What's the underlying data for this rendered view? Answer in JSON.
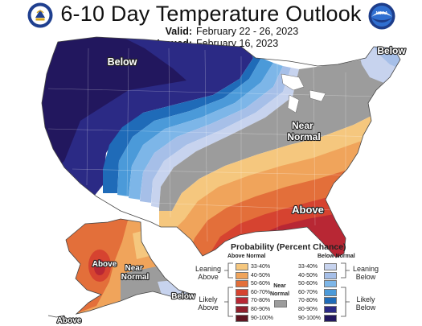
{
  "header": {
    "title": "6-10 Day Temperature Outlook",
    "valid_label": "Valid:",
    "valid_value": "February 22 - 26, 2023",
    "issued_label": "Issued:",
    "issued_value": "February 16, 2023"
  },
  "logos": {
    "left": "commerce-seal",
    "right": "noaa-logo",
    "right_text": "NOAA"
  },
  "map_labels": {
    "below_northwest": "Below",
    "below_maine": "Below",
    "near_normal_conus": "Near Normal",
    "above_southeast": "Above",
    "alaska_above_west": "Above",
    "alaska_near_normal": "Near Normal",
    "alaska_below_southeast": "Below",
    "alaska_above_southwest": "Above"
  },
  "legend": {
    "title": "Probability (Percent Chance)",
    "above_header": "Above Normal",
    "below_header": "Below Normal",
    "near_header": "Near Normal",
    "leaning_above": "Leaning Above",
    "likely_above": "Likely Above",
    "leaning_below": "Leaning Below",
    "likely_below": "Likely Below",
    "ranges": [
      "33-40%",
      "40-50%",
      "50-60%",
      "60-70%",
      "70-80%",
      "80-90%",
      "90-100%"
    ],
    "above_colors": [
      "#f5c77e",
      "#f0a45b",
      "#e36f3a",
      "#d64330",
      "#b82734",
      "#8f1f2c",
      "#5e1420"
    ],
    "below_colors": [
      "#c7d3ee",
      "#a6bfe8",
      "#7db6e8",
      "#4b9ad9",
      "#1f6bb8",
      "#2b2a85",
      "#22175e"
    ],
    "near_color": "#9c9c9c"
  }
}
